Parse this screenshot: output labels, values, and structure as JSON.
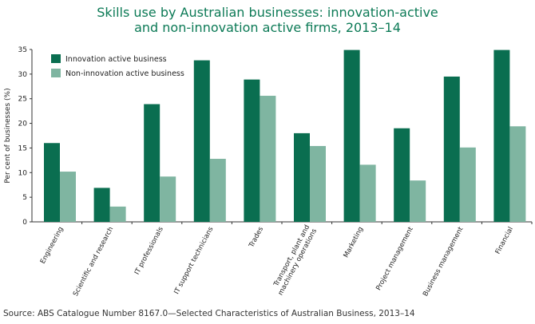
{
  "chart_data": {
    "type": "bar",
    "title_lines": [
      "Skills use by Australian businesses: innovation-active",
      "and non-innovation active firms, 2013–14"
    ],
    "ylabel": "Per cent of businesses (%)",
    "ylim": [
      0,
      35
    ],
    "yticks": [
      0,
      5,
      10,
      15,
      20,
      25,
      30,
      35
    ],
    "grid": false,
    "legend_position": "top-left",
    "categories": [
      "Engineering",
      "Scientific and research",
      "IT professionals",
      "IT support technicians",
      "Trades",
      "Transport, plant and machinery operations",
      "Marketing",
      "Project management",
      "Business management",
      "Financial"
    ],
    "category_label_lines": [
      [
        "Engineering"
      ],
      [
        "Scientific and research"
      ],
      [
        "IT professionals"
      ],
      [
        "IT support technicians"
      ],
      [
        "Trades"
      ],
      [
        "Transport, plant and",
        "machinery operations"
      ],
      [
        "Marketing"
      ],
      [
        "Project management"
      ],
      [
        "Business management"
      ],
      [
        "Financial"
      ]
    ],
    "series": [
      {
        "name": "Innovation active business",
        "color": "#0a6e50",
        "values": [
          16.0,
          6.9,
          23.9,
          32.8,
          28.9,
          18.0,
          34.9,
          19.0,
          29.5,
          34.9
        ]
      },
      {
        "name": "Non-innovation active business",
        "color": "#7fb5a1",
        "values": [
          10.2,
          3.1,
          9.2,
          12.8,
          25.6,
          15.4,
          11.6,
          8.4,
          15.1,
          19.4
        ]
      }
    ]
  },
  "source": "Source: ABS Catalogue Number 8167.0—Selected Characteristics of Australian Business, 2013–14"
}
